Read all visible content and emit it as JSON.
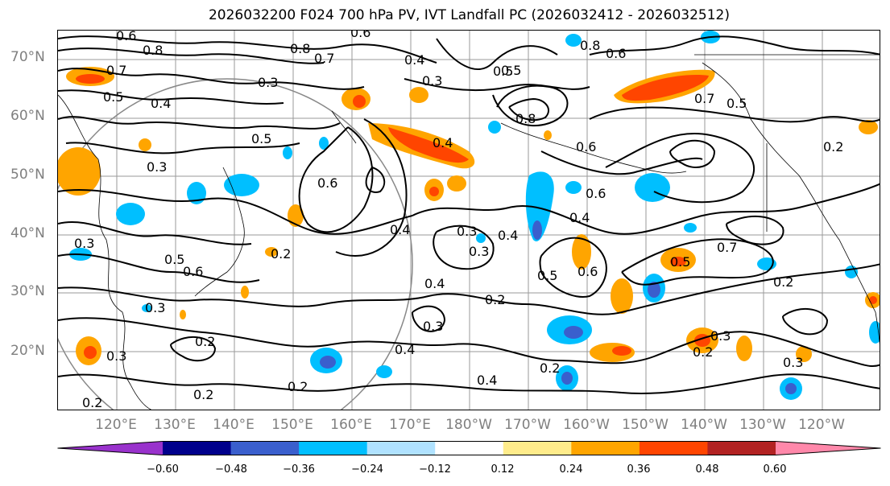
{
  "title": "2026032200 F024 700 hPa PV, IVT Landfall PC (2026032412 - 2026032512)",
  "lat_labels": [
    "70°N",
    "60°N",
    "50°N",
    "40°N",
    "30°N",
    "20°N"
  ],
  "lon_labels": [
    "120°E",
    "130°E",
    "140°E",
    "150°E",
    "160°E",
    "170°E",
    "180°W",
    "170°W",
    "160°W",
    "150°W",
    "140°W",
    "130°W",
    "120°W"
  ],
  "colorbar": {
    "colors": [
      "#9932cc",
      "#00008b",
      "#3a5fcd",
      "#00bfff",
      "#b0e2ff",
      "#ffffff",
      "#ffec8b",
      "#ffa500",
      "#ff4500",
      "#b22222",
      "#ff88aa"
    ],
    "tick_labels": [
      "−0.60",
      "−0.48",
      "−0.36",
      "−0.24",
      "−0.12",
      "0.12",
      "0.24",
      "0.36",
      "0.48",
      "0.60"
    ]
  },
  "contour_labels": [
    "0.6",
    "0.8",
    "0.7",
    "0.5",
    "0.4",
    "0.3",
    "0.8",
    "0.6",
    "0.4",
    "0.7",
    "0.5",
    "0.3",
    "0.8",
    "0.6",
    "0.7",
    "0.5",
    "0.3",
    "0.6",
    "0.4",
    "0.3",
    "0.5",
    "0.4",
    "0.5",
    "0.8",
    "0.6",
    "0.3",
    "0.2",
    "0.6",
    "0.4",
    "0.5",
    "0.4",
    "0.7",
    "0.5",
    "0.2",
    "0.3",
    "0.6",
    "0.2",
    "0.5",
    "0.6",
    "0.3",
    "0.4",
    "0.3",
    "0.2",
    "0.4",
    "0.2",
    "0.2",
    "0.4",
    "0.3",
    "0.2",
    "0.2",
    "0.2",
    "0.3",
    "0.2",
    "0.3"
  ]
}
